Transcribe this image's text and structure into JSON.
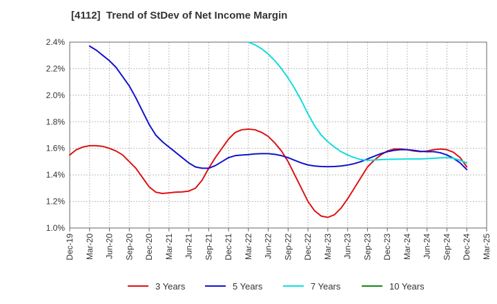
{
  "chart_data": {
    "type": "line",
    "title": "[4112]  Trend of StDev of Net Income Margin",
    "xlabel": "",
    "ylabel": "",
    "ylim": [
      1.0,
      2.4
    ],
    "yticks": [
      "1.0%",
      "1.2%",
      "1.4%",
      "1.6%",
      "1.8%",
      "2.0%",
      "2.2%",
      "2.4%"
    ],
    "ytick_values": [
      1.0,
      1.2,
      1.4,
      1.6,
      1.8,
      2.0,
      2.2,
      2.4
    ],
    "xticks": [
      "Dec-19",
      "Mar-20",
      "Jun-20",
      "Sep-20",
      "Dec-20",
      "Mar-21",
      "Jun-21",
      "Sep-21",
      "Dec-21",
      "Mar-22",
      "Jun-22",
      "Sep-22",
      "Dec-22",
      "Mar-23",
      "Jun-23",
      "Sep-23",
      "Dec-23",
      "Mar-24",
      "Jun-24",
      "Sep-24",
      "Dec-24",
      "Mar-25"
    ],
    "grid": true,
    "legend_position": "bottom",
    "series": [
      {
        "name": "3 Years",
        "color": "#dd1111",
        "x": [
          "Dec-19",
          "Jan-20",
          "Feb-20",
          "Mar-20",
          "Apr-20",
          "May-20",
          "Jun-20",
          "Jul-20",
          "Aug-20",
          "Sep-20",
          "Oct-20",
          "Nov-20",
          "Dec-20",
          "Jan-21",
          "Feb-21",
          "Mar-21",
          "Apr-21",
          "May-21",
          "Jun-21",
          "Jul-21",
          "Aug-21",
          "Sep-21",
          "Oct-21",
          "Nov-21",
          "Dec-21",
          "Jan-22",
          "Feb-22",
          "Mar-22",
          "Apr-22",
          "May-22",
          "Jun-22",
          "Jul-22",
          "Aug-22",
          "Sep-22",
          "Oct-22",
          "Nov-22",
          "Dec-22",
          "Jan-23",
          "Feb-23",
          "Mar-23",
          "Apr-23",
          "May-23",
          "Jun-23",
          "Jul-23",
          "Aug-23",
          "Sep-23",
          "Oct-23",
          "Nov-23",
          "Dec-23",
          "Jan-24",
          "Feb-24",
          "Mar-24",
          "Apr-24",
          "May-24",
          "Jun-24",
          "Jul-24",
          "Aug-24",
          "Sep-24",
          "Oct-24",
          "Nov-24",
          "Dec-24"
        ],
        "values": [
          1.55,
          1.59,
          1.61,
          1.62,
          1.62,
          1.615,
          1.6,
          1.58,
          1.55,
          1.5,
          1.45,
          1.38,
          1.31,
          1.27,
          1.26,
          1.265,
          1.27,
          1.272,
          1.278,
          1.3,
          1.36,
          1.45,
          1.53,
          1.6,
          1.67,
          1.72,
          1.74,
          1.745,
          1.74,
          1.72,
          1.69,
          1.64,
          1.58,
          1.5,
          1.4,
          1.3,
          1.2,
          1.13,
          1.09,
          1.08,
          1.1,
          1.15,
          1.22,
          1.3,
          1.38,
          1.46,
          1.51,
          1.55,
          1.58,
          1.595,
          1.595,
          1.59,
          1.58,
          1.575,
          1.58,
          1.59,
          1.595,
          1.59,
          1.57,
          1.53,
          1.46
        ]
      },
      {
        "name": "5 Years",
        "color": "#1111cc",
        "x": [
          "Mar-20",
          "Apr-20",
          "May-20",
          "Jun-20",
          "Jul-20",
          "Aug-20",
          "Sep-20",
          "Oct-20",
          "Nov-20",
          "Dec-20",
          "Jan-21",
          "Feb-21",
          "Mar-21",
          "Apr-21",
          "May-21",
          "Jun-21",
          "Jul-21",
          "Aug-21",
          "Sep-21",
          "Oct-21",
          "Nov-21",
          "Dec-21",
          "Jan-22",
          "Feb-22",
          "Mar-22",
          "Apr-22",
          "May-22",
          "Jun-22",
          "Jul-22",
          "Aug-22",
          "Sep-22",
          "Oct-22",
          "Nov-22",
          "Dec-22",
          "Jan-23",
          "Feb-23",
          "Mar-23",
          "Apr-23",
          "May-23",
          "Jun-23",
          "Jul-23",
          "Aug-23",
          "Sep-23",
          "Oct-23",
          "Nov-23",
          "Dec-23",
          "Jan-24",
          "Feb-24",
          "Mar-24",
          "Apr-24",
          "May-24",
          "Jun-24",
          "Jul-24",
          "Aug-24",
          "Sep-24",
          "Oct-24",
          "Nov-24",
          "Dec-24"
        ],
        "values": [
          2.37,
          2.34,
          2.3,
          2.26,
          2.21,
          2.14,
          2.07,
          1.98,
          1.88,
          1.78,
          1.7,
          1.65,
          1.61,
          1.57,
          1.53,
          1.49,
          1.46,
          1.45,
          1.45,
          1.47,
          1.5,
          1.53,
          1.545,
          1.55,
          1.553,
          1.558,
          1.56,
          1.56,
          1.555,
          1.545,
          1.53,
          1.51,
          1.49,
          1.475,
          1.467,
          1.463,
          1.462,
          1.463,
          1.467,
          1.474,
          1.485,
          1.5,
          1.52,
          1.54,
          1.56,
          1.575,
          1.585,
          1.59,
          1.59,
          1.585,
          1.578,
          1.575,
          1.575,
          1.567,
          1.55,
          1.525,
          1.49,
          1.44
        ]
      },
      {
        "name": "7 Years",
        "color": "#11dddd",
        "x": [
          "Mar-22",
          "Apr-22",
          "May-22",
          "Jun-22",
          "Jul-22",
          "Aug-22",
          "Sep-22",
          "Oct-22",
          "Nov-22",
          "Dec-22",
          "Jan-23",
          "Feb-23",
          "Mar-23",
          "Apr-23",
          "May-23",
          "Jun-23",
          "Jul-23",
          "Aug-23",
          "Sep-23",
          "Oct-23",
          "Nov-23",
          "Dec-23",
          "Jan-24",
          "Feb-24",
          "Mar-24",
          "Apr-24",
          "May-24",
          "Jun-24",
          "Jul-24",
          "Aug-24",
          "Sep-24",
          "Oct-24",
          "Nov-24",
          "Dec-24"
        ],
        "values": [
          2.4,
          2.38,
          2.35,
          2.31,
          2.26,
          2.2,
          2.13,
          2.05,
          1.96,
          1.86,
          1.77,
          1.7,
          1.65,
          1.61,
          1.575,
          1.55,
          1.53,
          1.515,
          1.51,
          1.512,
          1.515,
          1.517,
          1.518,
          1.519,
          1.52,
          1.52,
          1.52,
          1.523,
          1.525,
          1.528,
          1.53,
          1.525,
          1.51,
          1.49
        ]
      },
      {
        "name": "10 Years",
        "color": "#118811",
        "x": [],
        "values": []
      }
    ]
  }
}
